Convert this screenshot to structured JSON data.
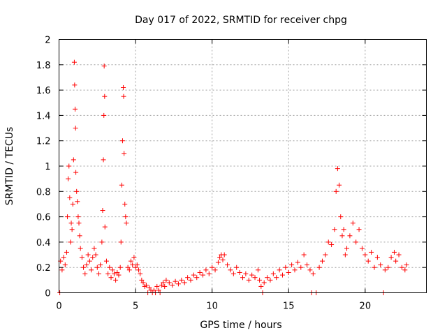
{
  "chart_data": {
    "type": "scatter",
    "title": "Day 017 of 2022, SRMTID for receiver chpg",
    "xlabel": "GPS time / hours",
    "ylabel": "SRMTID / TECUs",
    "xlim": [
      0,
      24
    ],
    "ylim": [
      0,
      2
    ],
    "xticks": [
      "0",
      "5",
      "10",
      "15",
      "20"
    ],
    "yticks": [
      "0",
      "0.2",
      "0.4",
      "0.6",
      "0.8",
      "1",
      "1.2",
      "1.4",
      "1.6",
      "1.8",
      "2"
    ],
    "grid": true,
    "marker": "+",
    "color": "#ff0000",
    "series": [
      {
        "name": "SRMTID",
        "points": [
          [
            0.05,
            0.0
          ],
          [
            0.1,
            0.25
          ],
          [
            0.2,
            0.18
          ],
          [
            0.3,
            0.28
          ],
          [
            0.4,
            0.22
          ],
          [
            0.5,
            0.32
          ],
          [
            0.55,
            0.6
          ],
          [
            0.6,
            0.9
          ],
          [
            0.65,
            1.0
          ],
          [
            0.7,
            0.75
          ],
          [
            0.75,
            0.4
          ],
          [
            0.8,
            0.55
          ],
          [
            0.85,
            0.5
          ],
          [
            0.9,
            0.7
          ],
          [
            0.95,
            1.05
          ],
          [
            1.0,
            1.82
          ],
          [
            1.02,
            1.64
          ],
          [
            1.05,
            1.45
          ],
          [
            1.08,
            1.3
          ],
          [
            1.1,
            0.95
          ],
          [
            1.15,
            0.8
          ],
          [
            1.2,
            0.72
          ],
          [
            1.25,
            0.6
          ],
          [
            1.3,
            0.55
          ],
          [
            1.35,
            0.45
          ],
          [
            1.4,
            0.35
          ],
          [
            1.5,
            0.28
          ],
          [
            1.6,
            0.2
          ],
          [
            1.7,
            0.15
          ],
          [
            1.8,
            0.22
          ],
          [
            1.9,
            0.3
          ],
          [
            2.0,
            0.25
          ],
          [
            2.1,
            0.18
          ],
          [
            2.2,
            0.28
          ],
          [
            2.3,
            0.35
          ],
          [
            2.4,
            0.3
          ],
          [
            2.5,
            0.2
          ],
          [
            2.6,
            0.15
          ],
          [
            2.7,
            0.22
          ],
          [
            2.8,
            0.4
          ],
          [
            2.85,
            0.65
          ],
          [
            2.9,
            1.05
          ],
          [
            2.93,
            1.4
          ],
          [
            2.95,
            1.79
          ],
          [
            2.98,
            1.55
          ],
          [
            3.0,
            0.52
          ],
          [
            3.1,
            0.25
          ],
          [
            3.2,
            0.15
          ],
          [
            3.3,
            0.2
          ],
          [
            3.4,
            0.12
          ],
          [
            3.5,
            0.18
          ],
          [
            3.6,
            0.15
          ],
          [
            3.7,
            0.1
          ],
          [
            3.8,
            0.16
          ],
          [
            3.9,
            0.14
          ],
          [
            4.0,
            0.2
          ],
          [
            4.05,
            0.4
          ],
          [
            4.1,
            0.85
          ],
          [
            4.15,
            1.2
          ],
          [
            4.2,
            1.62
          ],
          [
            4.22,
            1.55
          ],
          [
            4.25,
            1.1
          ],
          [
            4.3,
            0.7
          ],
          [
            4.35,
            0.6
          ],
          [
            4.4,
            0.55
          ],
          [
            4.5,
            0.2
          ],
          [
            4.6,
            0.18
          ],
          [
            4.7,
            0.25
          ],
          [
            4.8,
            0.22
          ],
          [
            4.9,
            0.28
          ],
          [
            5.0,
            0.2
          ],
          [
            5.1,
            0.22
          ],
          [
            5.2,
            0.18
          ],
          [
            5.3,
            0.15
          ],
          [
            5.4,
            0.1
          ],
          [
            5.5,
            0.08
          ],
          [
            5.6,
            0.05
          ],
          [
            5.7,
            0.06
          ],
          [
            5.8,
            0.0
          ],
          [
            5.9,
            0.04
          ],
          [
            6.0,
            0.02
          ],
          [
            6.1,
            0.0
          ],
          [
            6.2,
            0.02
          ],
          [
            6.3,
            0.0
          ],
          [
            6.4,
            0.05
          ],
          [
            6.5,
            0.02
          ],
          [
            6.6,
            0.0
          ],
          [
            6.7,
            0.06
          ],
          [
            6.8,
            0.08
          ],
          [
            6.9,
            0.05
          ],
          [
            7.0,
            0.1
          ],
          [
            7.2,
            0.08
          ],
          [
            7.4,
            0.06
          ],
          [
            7.6,
            0.09
          ],
          [
            7.8,
            0.07
          ],
          [
            8.0,
            0.1
          ],
          [
            8.2,
            0.08
          ],
          [
            8.4,
            0.12
          ],
          [
            8.6,
            0.1
          ],
          [
            8.8,
            0.14
          ],
          [
            9.0,
            0.12
          ],
          [
            9.2,
            0.16
          ],
          [
            9.4,
            0.14
          ],
          [
            9.6,
            0.18
          ],
          [
            9.8,
            0.15
          ],
          [
            10.0,
            0.2
          ],
          [
            10.2,
            0.18
          ],
          [
            10.4,
            0.24
          ],
          [
            10.5,
            0.28
          ],
          [
            10.6,
            0.3
          ],
          [
            10.7,
            0.26
          ],
          [
            10.8,
            0.3
          ],
          [
            11.0,
            0.22
          ],
          [
            11.2,
            0.18
          ],
          [
            11.4,
            0.15
          ],
          [
            11.6,
            0.2
          ],
          [
            11.8,
            0.16
          ],
          [
            12.0,
            0.12
          ],
          [
            12.2,
            0.15
          ],
          [
            12.4,
            0.1
          ],
          [
            12.6,
            0.14
          ],
          [
            12.8,
            0.12
          ],
          [
            13.0,
            0.18
          ],
          [
            13.1,
            0.1
          ],
          [
            13.2,
            0.05
          ],
          [
            13.3,
            0.0
          ],
          [
            13.4,
            0.08
          ],
          [
            13.6,
            0.12
          ],
          [
            13.8,
            0.1
          ],
          [
            14.0,
            0.15
          ],
          [
            14.2,
            0.12
          ],
          [
            14.4,
            0.18
          ],
          [
            14.6,
            0.14
          ],
          [
            14.8,
            0.2
          ],
          [
            15.0,
            0.16
          ],
          [
            15.2,
            0.22
          ],
          [
            15.4,
            0.18
          ],
          [
            15.6,
            0.24
          ],
          [
            15.8,
            0.2
          ],
          [
            16.0,
            0.3
          ],
          [
            16.2,
            0.22
          ],
          [
            16.4,
            0.18
          ],
          [
            16.5,
            0.0
          ],
          [
            16.6,
            0.15
          ],
          [
            16.8,
            0.0
          ],
          [
            17.0,
            0.2
          ],
          [
            17.2,
            0.25
          ],
          [
            17.4,
            0.3
          ],
          [
            17.6,
            0.4
          ],
          [
            17.8,
            0.38
          ],
          [
            18.0,
            0.5
          ],
          [
            18.1,
            0.8
          ],
          [
            18.2,
            0.98
          ],
          [
            18.3,
            0.85
          ],
          [
            18.4,
            0.6
          ],
          [
            18.5,
            0.45
          ],
          [
            18.6,
            0.5
          ],
          [
            18.7,
            0.3
          ],
          [
            18.8,
            0.35
          ],
          [
            19.0,
            0.45
          ],
          [
            19.2,
            0.55
          ],
          [
            19.4,
            0.4
          ],
          [
            19.6,
            0.5
          ],
          [
            19.8,
            0.35
          ],
          [
            20.0,
            0.3
          ],
          [
            20.2,
            0.25
          ],
          [
            20.4,
            0.32
          ],
          [
            20.6,
            0.2
          ],
          [
            20.8,
            0.28
          ],
          [
            21.0,
            0.22
          ],
          [
            21.2,
            0.0
          ],
          [
            21.3,
            0.18
          ],
          [
            21.5,
            0.2
          ],
          [
            21.7,
            0.28
          ],
          [
            21.9,
            0.32
          ],
          [
            22.0,
            0.25
          ],
          [
            22.2,
            0.3
          ],
          [
            22.4,
            0.2
          ],
          [
            22.6,
            0.18
          ],
          [
            22.7,
            0.22
          ]
        ]
      }
    ]
  }
}
